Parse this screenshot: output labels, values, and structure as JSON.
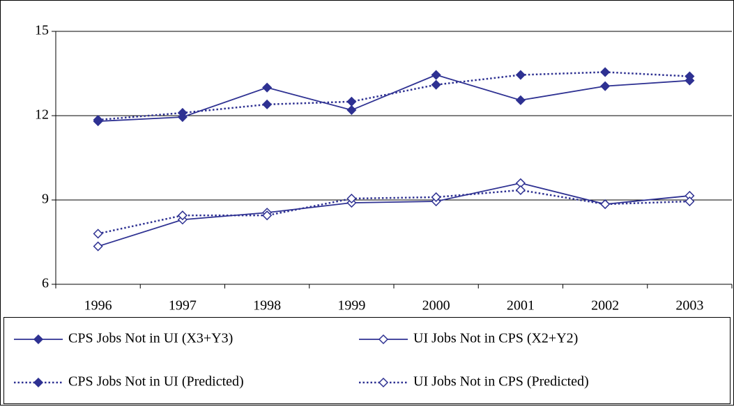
{
  "chart_data": {
    "type": "line",
    "categories": [
      "1996",
      "1997",
      "1998",
      "1999",
      "2000",
      "2001",
      "2002",
      "2003"
    ],
    "series": [
      {
        "name": "CPS Jobs Not in UI (X3+Y3)",
        "color": "#2e3192",
        "line_style": "solid",
        "marker": "filled",
        "values": [
          11.8,
          11.95,
          13.0,
          12.2,
          13.45,
          12.55,
          13.05,
          13.25
        ]
      },
      {
        "name": "UI Jobs Not in CPS (X2+Y2)",
        "color": "#2e3192",
        "line_style": "solid",
        "marker": "hollow",
        "values": [
          7.35,
          8.3,
          8.55,
          8.9,
          8.95,
          9.6,
          8.85,
          9.15
        ]
      },
      {
        "name": "CPS Jobs Not in UI (Predicted)",
        "color": "#2e3192",
        "line_style": "dotted",
        "marker": "filled",
        "values": [
          11.85,
          12.1,
          12.4,
          12.5,
          13.1,
          13.45,
          13.55,
          13.4
        ]
      },
      {
        "name": "UI Jobs Not in CPS (Predicted)",
        "color": "#2e3192",
        "line_style": "dotted",
        "marker": "hollow",
        "values": [
          7.8,
          8.45,
          8.45,
          9.05,
          9.1,
          9.35,
          8.85,
          8.95
        ]
      }
    ],
    "ylim": [
      6,
      15
    ],
    "yticks": [
      6,
      9,
      12,
      15
    ],
    "grid": true,
    "legend": "bottom"
  }
}
